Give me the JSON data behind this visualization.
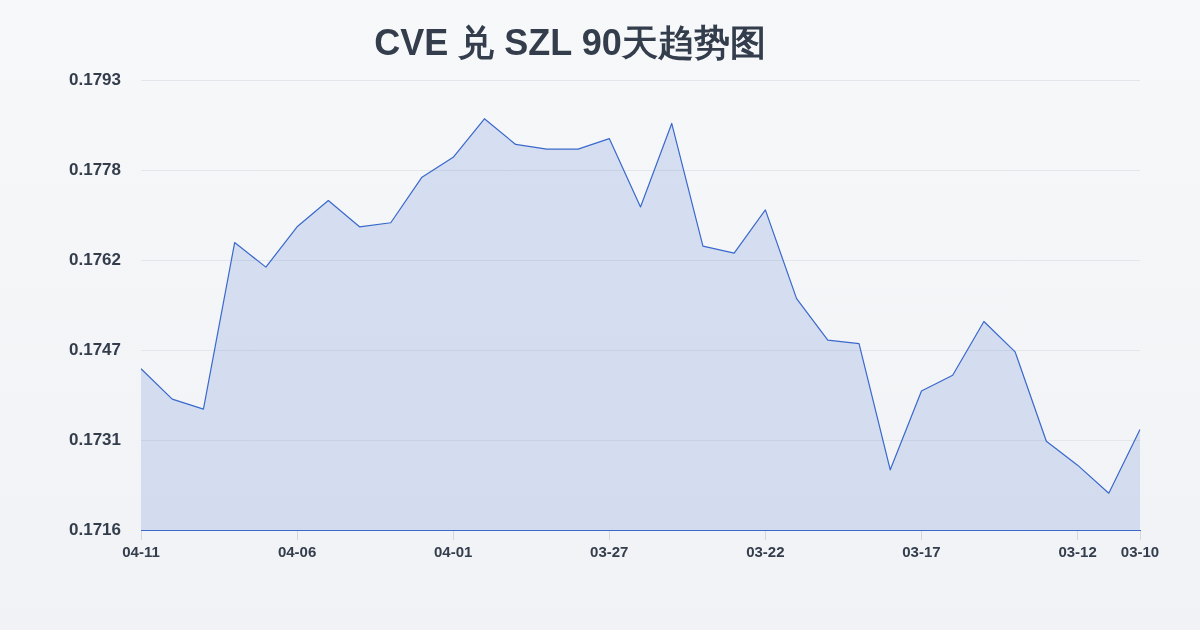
{
  "chart_data": {
    "type": "area",
    "title": "CVE 兑 SZL 90天趋势图",
    "categories": [
      "04-11",
      null,
      null,
      null,
      null,
      "04-06",
      null,
      null,
      null,
      null,
      "04-01",
      null,
      null,
      null,
      null,
      "03-27",
      null,
      null,
      null,
      null,
      "03-22",
      null,
      null,
      null,
      null,
      "03-17",
      null,
      null,
      null,
      null,
      "03-12",
      null,
      "03-10"
    ],
    "values": [
      0.17436,
      0.17384,
      0.17367,
      0.17652,
      0.1761,
      0.17679,
      0.17724,
      0.17679,
      0.17686,
      0.17764,
      0.17798,
      0.17864,
      0.1782,
      0.17812,
      0.17812,
      0.1783,
      0.17713,
      0.17856,
      0.17646,
      0.17634,
      0.17708,
      0.17556,
      0.17485,
      0.17479,
      0.17263,
      0.17398,
      0.17425,
      0.17517,
      0.17465,
      0.17312,
      0.17271,
      0.17223,
      0.17332
    ],
    "color": "#3a68cc",
    "ylim": [
      0.1716,
      0.1793
    ],
    "yticks": [
      0.1716,
      {
        "value": 0.17314,
        "label": "0.1731"
      },
      {
        "value": 0.17468,
        "label": "0.1747"
      },
      {
        "value": 0.17622,
        "label": "0.1762"
      },
      {
        "value": 0.17776,
        "label": "0.1778"
      },
      0.1793
    ],
    "grid": "y",
    "marker": "none"
  }
}
